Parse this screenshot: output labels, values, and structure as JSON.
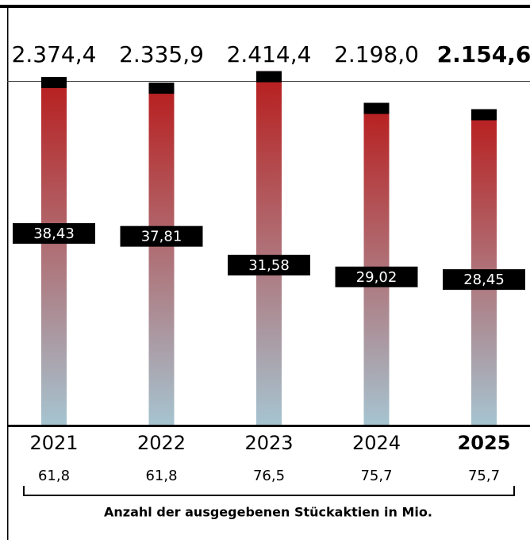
{
  "chart_data": {
    "type": "bar",
    "categories": [
      "2021",
      "2022",
      "2023",
      "2024",
      "2025"
    ],
    "values": [
      2374.4,
      2335.9,
      2414.4,
      2198.0,
      2154.6
    ],
    "value_labels": [
      "2.374,4",
      "2.335,9",
      "2.414,4",
      "2.198,0",
      "2.154,6"
    ],
    "ylim": [
      0,
      2900
    ],
    "color_top": "#b81c1c",
    "color_bottom": "#a6c4d0",
    "cap_color": "#000000",
    "price_values": [
      38.43,
      37.81,
      31.58,
      29.02,
      28.45
    ],
    "price_labels": [
      "38,43",
      "37,81",
      "31,58",
      "29,02",
      "28,45"
    ],
    "y2lim": [
      -3,
      89
    ],
    "share_counts": [
      61.8,
      61.8,
      76.5,
      75.7,
      75.7
    ],
    "share_count_labels": [
      "61,8",
      "61,8",
      "76,5",
      "75,7",
      "75,7"
    ],
    "share_caption": "Anzahl der ausgegebenen Stückaktien in Mio.",
    "highlight_index": 4
  }
}
